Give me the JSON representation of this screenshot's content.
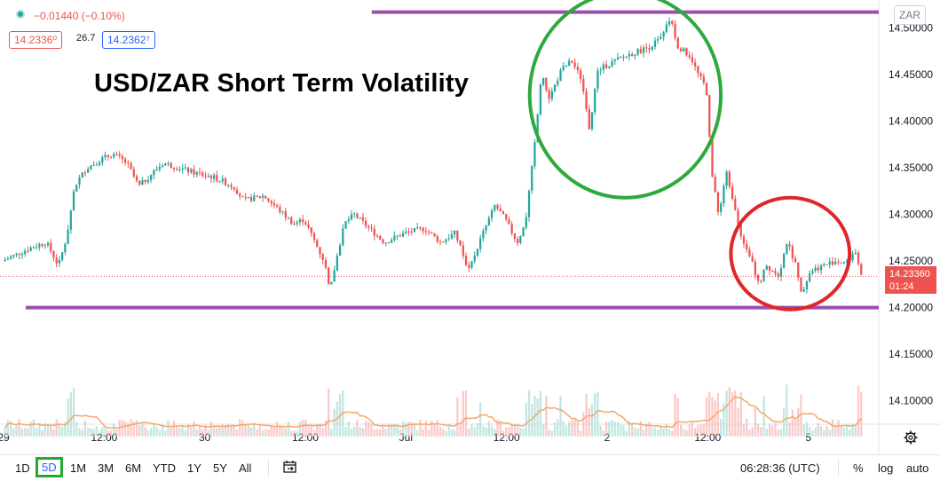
{
  "header": {
    "change_text": "−0.01440 (−0.10%)",
    "sell_price": "14.2336⁰",
    "spread": "26.7",
    "buy_price": "14.2362⁷",
    "currency_badge": "ZAR"
  },
  "chart_data": {
    "type": "candlestick",
    "title": "USD/ZAR Short Term Volatility",
    "symbol": "USD/ZAR",
    "interval": "5D",
    "y_axis": {
      "ticks": [
        "14.50000",
        "14.45000",
        "14.40000",
        "14.35000",
        "14.30000",
        "14.25000",
        "14.20000",
        "14.15000",
        "14.10000"
      ],
      "tick_values": [
        14.5,
        14.45,
        14.4,
        14.35,
        14.3,
        14.25,
        14.2,
        14.15,
        14.1
      ],
      "range": [
        14.075,
        14.53
      ]
    },
    "x_axis": {
      "ticks": [
        "29",
        "12:00",
        "30",
        "12:00",
        "Jul",
        "12:00",
        "2",
        "12:00",
        "5"
      ],
      "range_days": [
        0,
        4.35
      ]
    },
    "price_path": [
      [
        0.0,
        14.25
      ],
      [
        0.05,
        14.255
      ],
      [
        0.15,
        14.265
      ],
      [
        0.22,
        14.27
      ],
      [
        0.28,
        14.245
      ],
      [
        0.32,
        14.275
      ],
      [
        0.36,
        14.33
      ],
      [
        0.42,
        14.35
      ],
      [
        0.5,
        14.36
      ],
      [
        0.55,
        14.365
      ],
      [
        0.62,
        14.355
      ],
      [
        0.68,
        14.33
      ],
      [
        0.75,
        14.345
      ],
      [
        0.8,
        14.355
      ],
      [
        0.88,
        14.35
      ],
      [
        0.95,
        14.345
      ],
      [
        1.05,
        14.34
      ],
      [
        1.15,
        14.33
      ],
      [
        1.2,
        14.315
      ],
      [
        1.3,
        14.32
      ],
      [
        1.35,
        14.31
      ],
      [
        1.4,
        14.3
      ],
      [
        1.45,
        14.29
      ],
      [
        1.5,
        14.295
      ],
      [
        1.6,
        14.25
      ],
      [
        1.63,
        14.22
      ],
      [
        1.7,
        14.29
      ],
      [
        1.75,
        14.3
      ],
      [
        1.8,
        14.29
      ],
      [
        1.9,
        14.27
      ],
      [
        2.0,
        14.28
      ],
      [
        2.1,
        14.285
      ],
      [
        2.18,
        14.27
      ],
      [
        2.25,
        14.28
      ],
      [
        2.32,
        14.24
      ],
      [
        2.38,
        14.275
      ],
      [
        2.45,
        14.31
      ],
      [
        2.5,
        14.295
      ],
      [
        2.56,
        14.27
      ],
      [
        2.6,
        14.29
      ],
      [
        2.65,
        14.38
      ],
      [
        2.68,
        14.45
      ],
      [
        2.72,
        14.425
      ],
      [
        2.78,
        14.455
      ],
      [
        2.83,
        14.465
      ],
      [
        2.88,
        14.445
      ],
      [
        2.92,
        14.39
      ],
      [
        2.96,
        14.455
      ],
      [
        3.05,
        14.465
      ],
      [
        3.1,
        14.47
      ],
      [
        3.16,
        14.475
      ],
      [
        3.22,
        14.48
      ],
      [
        3.28,
        14.49
      ],
      [
        3.32,
        14.51
      ],
      [
        3.36,
        14.48
      ],
      [
        3.42,
        14.47
      ],
      [
        3.46,
        14.45
      ],
      [
        3.5,
        14.435
      ],
      [
        3.53,
        14.34
      ],
      [
        3.56,
        14.3
      ],
      [
        3.6,
        14.345
      ],
      [
        3.64,
        14.31
      ],
      [
        3.68,
        14.27
      ],
      [
        3.72,
        14.255
      ],
      [
        3.76,
        14.225
      ],
      [
        3.8,
        14.245
      ],
      [
        3.86,
        14.235
      ],
      [
        3.9,
        14.27
      ],
      [
        3.94,
        14.25
      ],
      [
        3.97,
        14.215
      ],
      [
        4.02,
        14.24
      ],
      [
        4.08,
        14.245
      ],
      [
        4.14,
        14.25
      ],
      [
        4.2,
        14.248
      ],
      [
        4.24,
        14.262
      ],
      [
        4.27,
        14.2336
      ]
    ],
    "volume_baseline": 14.062,
    "annotations": {
      "resistance_level": 14.517,
      "support_level": 14.2,
      "green_ellipse": {
        "center_day": 3.09,
        "center_price": 14.428,
        "half_width_days": 0.475,
        "half_height_price": 0.11
      },
      "red_ellipse": {
        "center_day": 3.91,
        "center_price": 14.258,
        "half_width_days": 0.295,
        "half_height_price": 0.06
      }
    },
    "last_price": "14.23360",
    "countdown": "01:24",
    "colors": {
      "up": "#26a69a",
      "down": "#ef5350",
      "support_line": "#9c4fb0",
      "green_ellipse": "#2daa3c",
      "red_ellipse": "#e0262b",
      "volume_ma": "#f5a86a"
    }
  },
  "bottom_bar": {
    "timeframes": [
      "1D",
      "5D",
      "1M",
      "3M",
      "6M",
      "YTD",
      "1Y",
      "5Y",
      "All"
    ],
    "selected_timeframe": "5D",
    "clock": "06:28:36 (UTC)",
    "percent_label": "%",
    "log_label": "log",
    "auto_label": "auto"
  }
}
